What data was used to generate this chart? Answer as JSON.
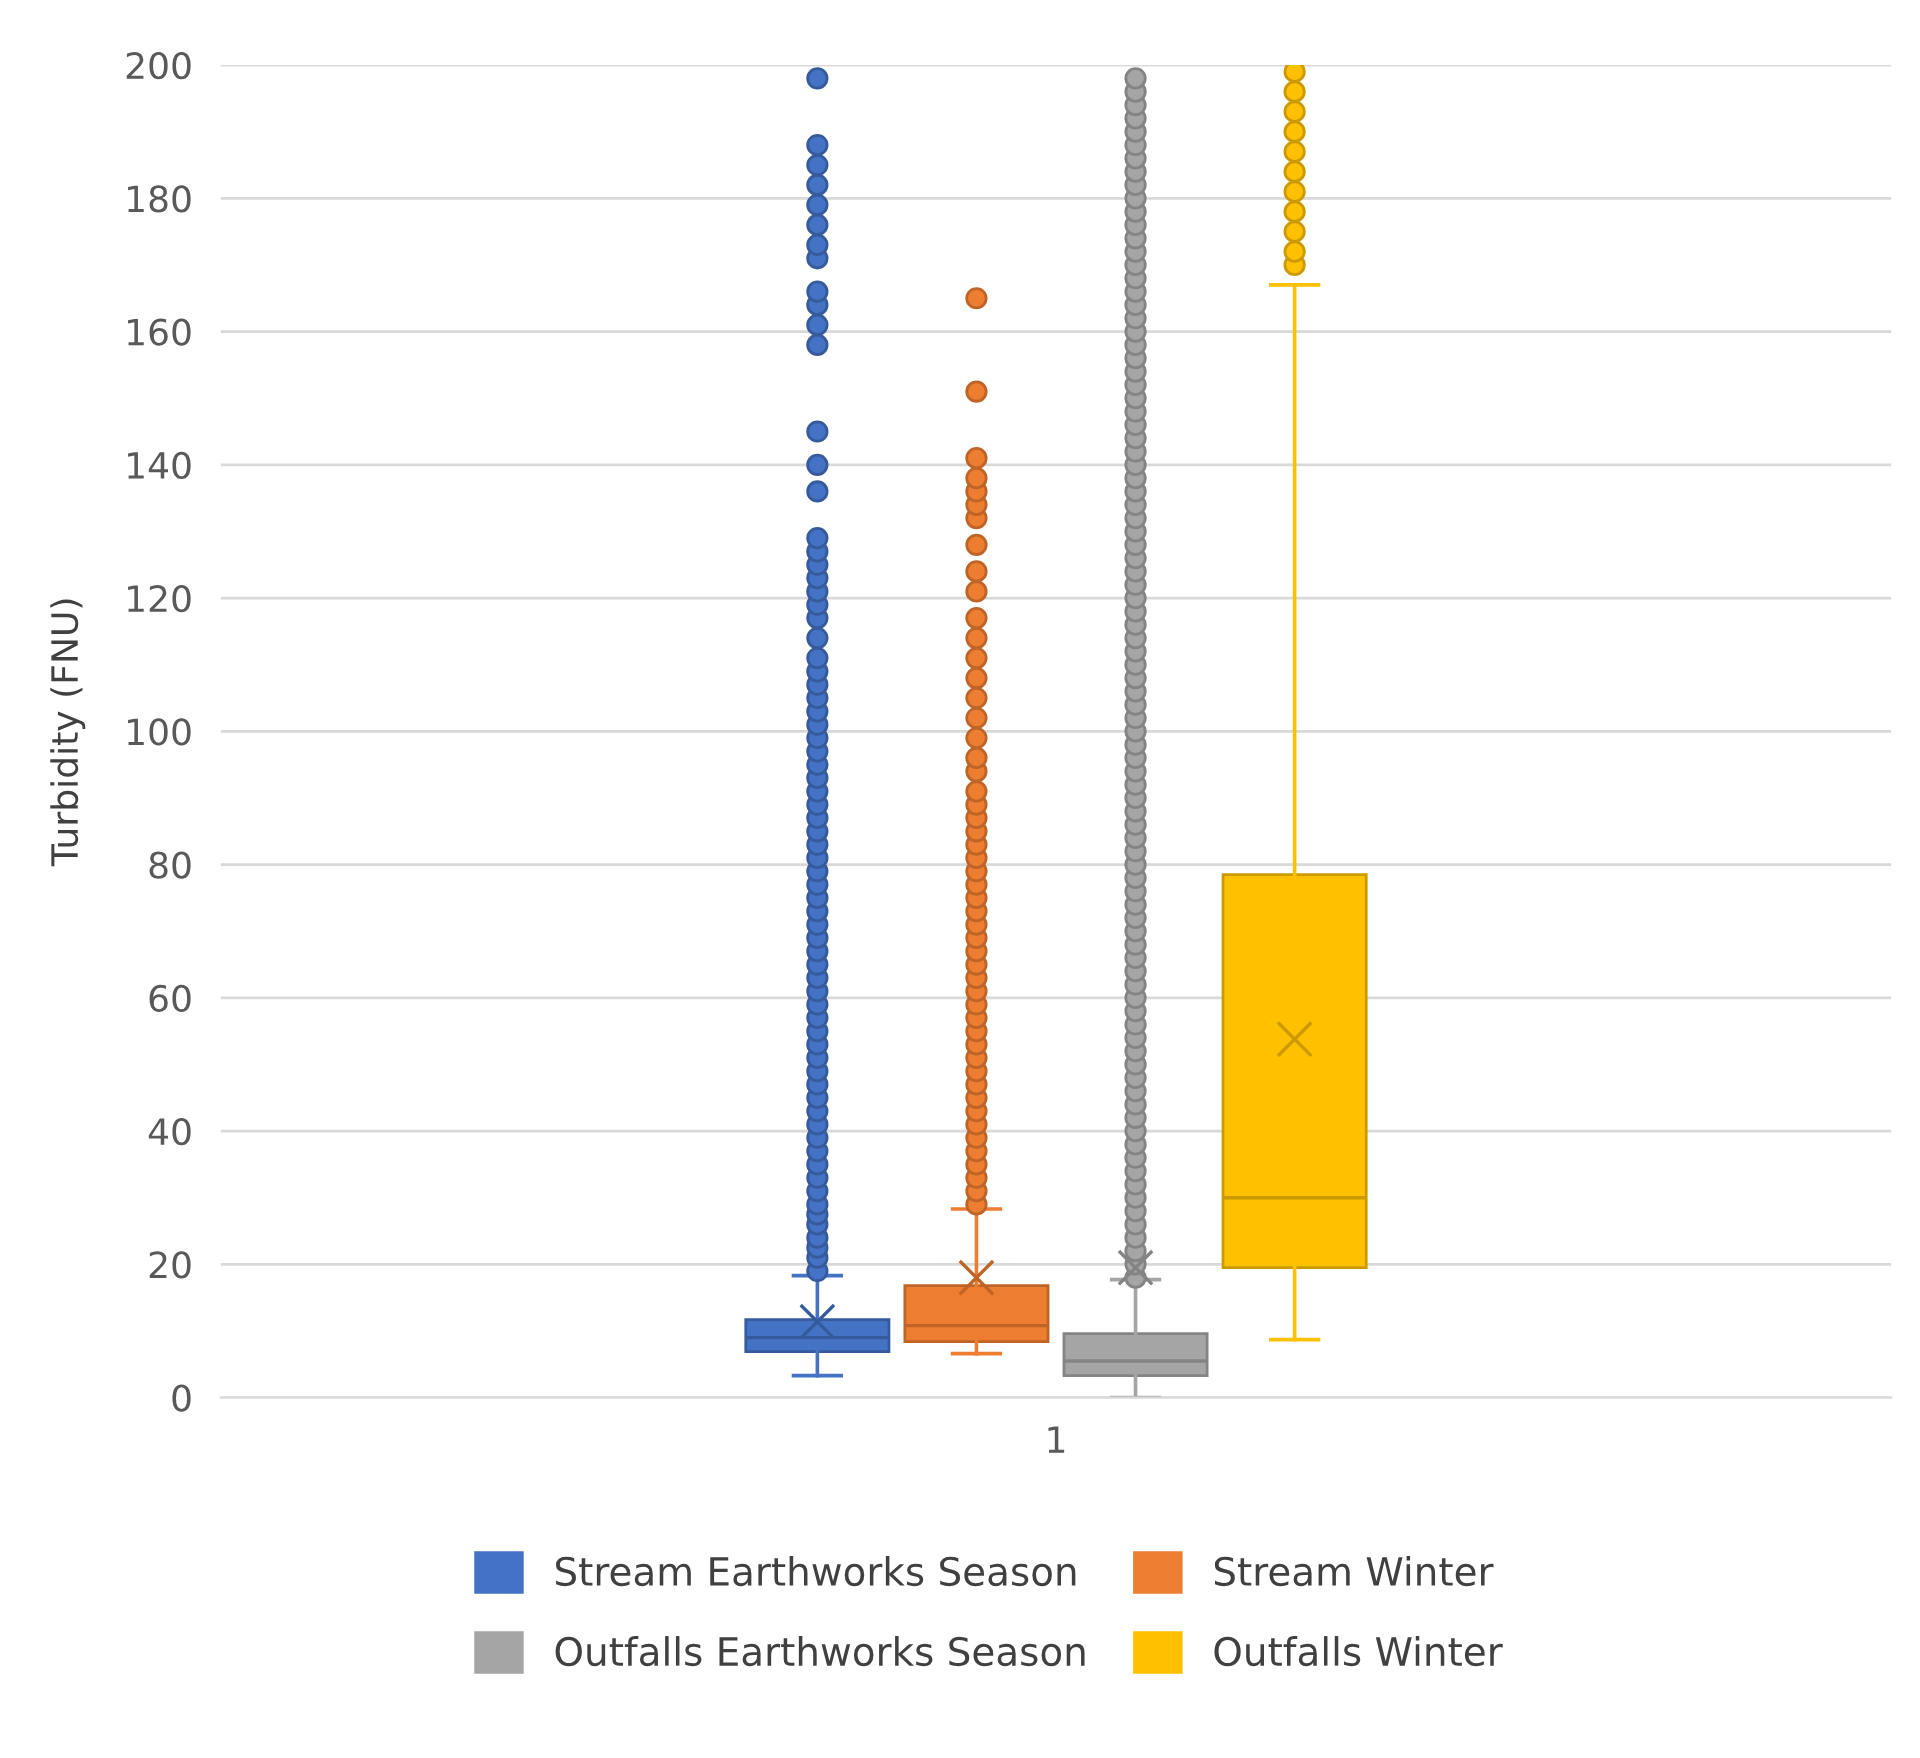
{
  "chart_data": {
    "type": "box",
    "ylabel": "Turbidity (FNU)",
    "categories": [
      "1"
    ],
    "ylim": [
      0,
      200
    ],
    "yticks": [
      0,
      20,
      40,
      60,
      80,
      100,
      120,
      140,
      160,
      180,
      200
    ],
    "grid": "y",
    "legend": "bottom",
    "marker": "circle",
    "series": [
      {
        "name": "Stream Earthworks Season",
        "color": "#4472c4",
        "boxes": [
          {
            "low": 3.3,
            "q1": 6.9,
            "median": 9,
            "q3": 11.7,
            "high": 18.3,
            "mean": 11.4,
            "outliers": [
              19,
              21,
              22.5,
              24,
              26,
              27.5,
              29,
              31,
              33,
              35,
              37,
              39,
              41,
              43,
              45,
              47,
              49,
              51,
              53,
              55,
              57,
              59,
              61,
              63,
              65,
              67,
              69,
              71,
              73,
              75,
              77,
              79,
              81,
              83,
              85,
              87,
              89,
              91,
              93,
              95,
              97,
              99,
              101,
              103,
              105,
              107,
              109,
              111,
              114,
              117,
              119,
              121,
              123,
              125,
              127,
              129,
              136,
              140,
              145,
              158,
              161,
              164,
              166,
              171,
              173,
              176,
              179,
              182,
              185,
              188,
              198
            ]
          }
        ]
      },
      {
        "name": "Stream Winter",
        "color": "#ed7d31",
        "boxes": [
          {
            "low": 6.6,
            "q1": 8.4,
            "median": 10.8,
            "q3": 16.8,
            "high": 28.3,
            "mean": 18,
            "outliers": [
              29,
              31,
              33,
              35,
              37,
              39,
              41,
              43,
              45,
              47,
              49,
              51,
              53,
              55,
              57,
              59,
              61,
              63,
              65,
              67,
              69,
              71,
              73,
              75,
              77,
              79,
              81,
              83,
              85,
              87,
              89,
              91,
              94,
              96,
              99,
              102,
              105,
              108,
              111,
              114,
              117,
              121,
              124,
              128,
              132,
              134,
              136,
              138,
              141,
              151,
              165
            ]
          }
        ]
      },
      {
        "name": "Outfalls Earthworks Season",
        "color": "#a5a5a5",
        "boxes": [
          {
            "low": 0,
            "q1": 3.3,
            "median": 5.5,
            "q3": 9.6,
            "high": 17.7,
            "mean": 19.5,
            "outliers": [
              18,
              20,
              22,
              24,
              26,
              28,
              30,
              32,
              34,
              36,
              38,
              40,
              42,
              44,
              46,
              48,
              50,
              52,
              54,
              56,
              58,
              60,
              62,
              64,
              66,
              68,
              70,
              72,
              74,
              76,
              78,
              80,
              82,
              84,
              86,
              88,
              90,
              92,
              94,
              96,
              98,
              100,
              102,
              104,
              106,
              108,
              110,
              112,
              114,
              116,
              118,
              120,
              122,
              124,
              126,
              128,
              130,
              132,
              134,
              136,
              138,
              140,
              142,
              144,
              146,
              148,
              150,
              152,
              154,
              156,
              158,
              160,
              162,
              164,
              166,
              168,
              170,
              172,
              174,
              176,
              178,
              180,
              182,
              184,
              186,
              188,
              190,
              192,
              194,
              196,
              198
            ]
          }
        ]
      },
      {
        "name": "Outfalls Winter",
        "color": "#ffc000",
        "boxes": [
          {
            "low": 8.7,
            "q1": 19.5,
            "median": 30,
            "q3": 78.5,
            "high": 167,
            "mean": 53.8,
            "outliers": [
              170,
              172,
              175,
              178,
              181,
              184,
              187,
              190,
              193,
              196,
              199
            ]
          }
        ]
      }
    ]
  }
}
